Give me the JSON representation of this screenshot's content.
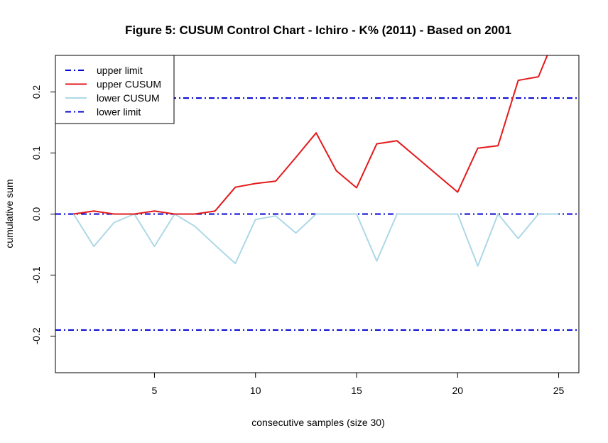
{
  "chart_data": {
    "type": "line",
    "title": "Figure 5: CUSUM Control Chart - Ichiro - K% (2011) - Based on 2001",
    "xlabel": "consecutive samples (size 30)",
    "ylabel": "cumulative sum",
    "xlim": [
      0.1,
      26.0
    ],
    "ylim": [
      -0.26,
      0.26
    ],
    "x_ticks": [
      5,
      10,
      15,
      20,
      25
    ],
    "x_tick_labels": [
      "5",
      "10",
      "15",
      "20",
      "25"
    ],
    "y_ticks": [
      -0.2,
      -0.1,
      0.0,
      0.1,
      0.2
    ],
    "y_tick_labels": [
      "-0.2",
      "-0.1",
      "0.0",
      "0.1",
      "0.2"
    ],
    "legend_position": "top-left",
    "hlines": [
      {
        "name": "upper limit",
        "y": 0.19,
        "color": "#0000cc",
        "style": "dotdash"
      },
      {
        "name": "zero",
        "y": 0.0,
        "color": "#0000cc",
        "style": "dotdash"
      },
      {
        "name": "lower limit",
        "y": -0.19,
        "color": "#0000cc",
        "style": "dotdash"
      }
    ],
    "series": [
      {
        "name": "upper CUSUM",
        "color": "#e31a1c",
        "x": [
          1,
          2,
          3,
          4,
          5,
          6,
          7,
          8,
          9,
          10,
          11,
          12,
          13,
          14,
          15,
          16,
          17,
          18,
          19,
          20,
          21,
          22,
          23,
          24,
          25
        ],
        "values": [
          0.0,
          0.005,
          0.0,
          0.0,
          0.005,
          0.0,
          0.0,
          0.005,
          0.044,
          0.05,
          0.054,
          0.093,
          0.133,
          0.071,
          0.043,
          0.115,
          0.12,
          0.092,
          0.064,
          0.036,
          0.108,
          0.112,
          0.219,
          0.225,
          0.305
        ]
      },
      {
        "name": "lower CUSUM",
        "color": "#add8e6",
        "x": [
          1,
          2,
          3,
          4,
          5,
          6,
          7,
          8,
          9,
          10,
          11,
          12,
          13,
          14,
          15,
          16,
          17,
          18,
          19,
          20,
          21,
          22,
          23,
          24,
          25
        ],
        "values": [
          0.0,
          -0.053,
          -0.014,
          0.0,
          -0.053,
          0.0,
          -0.02,
          -0.051,
          -0.081,
          -0.009,
          -0.003,
          -0.031,
          0.0,
          0.0,
          0.0,
          -0.077,
          0.0,
          0.0,
          0.0,
          0.0,
          -0.085,
          0.0,
          -0.04,
          0.0,
          0.0
        ]
      }
    ],
    "legend": [
      {
        "label": "upper limit",
        "color": "#0000cc",
        "style": "dotdash"
      },
      {
        "label": "upper CUSUM",
        "color": "#e31a1c",
        "style": "solid"
      },
      {
        "label": "lower CUSUM",
        "color": "#add8e6",
        "style": "solid"
      },
      {
        "label": "lower limit",
        "color": "#0000cc",
        "style": "dotdash"
      }
    ]
  }
}
